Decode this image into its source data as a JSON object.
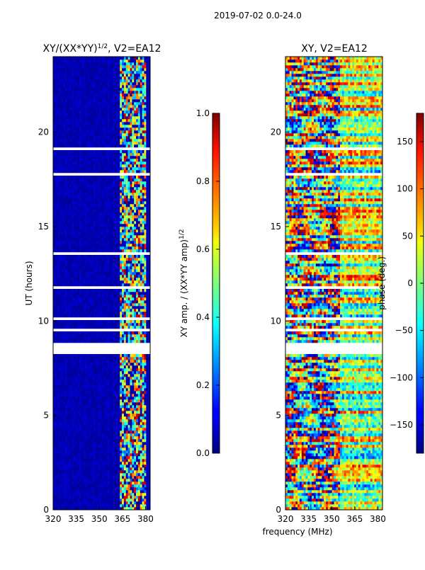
{
  "suptitle": "2019-07-02 0.0-24.0",
  "chart_data": [
    {
      "type": "heatmap",
      "title": "XY/(XX*YY)^(1/2), V2=EA12",
      "ylabel": "UT (hours)",
      "xlabel": "",
      "xticks": [
        320,
        335,
        350,
        365,
        380
      ],
      "yticks": [
        0,
        5,
        10,
        15,
        20
      ],
      "xlim": [
        320,
        383
      ],
      "ylim": [
        0,
        24
      ],
      "colorbar": {
        "label": "XY amp. / (XX*YY amp)^(1/2)",
        "ticks": [
          "0.0",
          "0.2",
          "0.4",
          "0.6",
          "0.8",
          "1.0"
        ],
        "range": [
          0,
          1
        ]
      },
      "flagged_band_hours": [
        8.2,
        8.8
      ],
      "description_colormap": "jet"
    },
    {
      "type": "heatmap",
      "title": "XY, V2=EA12",
      "ylabel": "",
      "xlabel": "frequency (MHz)",
      "xticks": [
        320,
        335,
        350,
        365,
        380
      ],
      "yticks": [
        0,
        5,
        10,
        15,
        20
      ],
      "xlim": [
        320,
        383
      ],
      "ylim": [
        0,
        24
      ],
      "colorbar": {
        "label": "phase (deg.)",
        "ticks": [
          "−150",
          "−100",
          "−50",
          "0",
          "50",
          "100",
          "150"
        ],
        "range": [
          -180,
          180
        ]
      },
      "flagged_band_hours": [
        8.2,
        8.8
      ],
      "description_colormap": "jet"
    }
  ]
}
